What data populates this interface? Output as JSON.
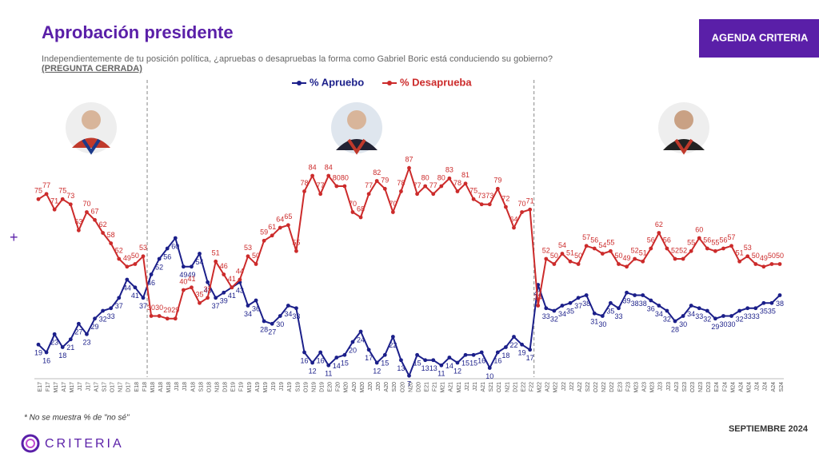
{
  "chart_data": {
    "type": "line",
    "title": "Aprobación presidente",
    "subtitle": "Independientemente de tu posición política, ¿apruebas o desapruebas la forma como Gabriel Boric está conduciendo su gobierno?",
    "question_type": "(PREGUNTA CERRADA)",
    "footnote": "* No se muestra % de \"no sé\"",
    "date_label": "SEPTIEMBRE 2024",
    "categories": [
      "E17",
      "F17",
      "M17",
      "A17",
      "M17",
      "J17",
      "J17",
      "A17",
      "S17",
      "O17",
      "N17",
      "D17",
      "E18",
      "F18",
      "M18",
      "A18",
      "M18",
      "J18",
      "J18",
      "A18",
      "S18",
      "O18",
      "N18",
      "D18",
      "E19",
      "F19",
      "M19",
      "A19",
      "M19",
      "J19",
      "J19",
      "A19",
      "S19",
      "O19",
      "N19",
      "D19",
      "E20",
      "F20",
      "M20",
      "A20",
      "M20",
      "J20",
      "J20",
      "A20",
      "S20",
      "O20",
      "N20",
      "D20",
      "E21",
      "F21",
      "M21",
      "A21",
      "M21",
      "J21",
      "J21",
      "A21",
      "S21",
      "O21",
      "N21",
      "D21",
      "E22",
      "F22",
      "M22",
      "A22",
      "M22",
      "J22",
      "J22",
      "A22",
      "S22",
      "O22",
      "N22",
      "D22",
      "E23",
      "F23",
      "M23",
      "A23",
      "M23",
      "J23",
      "J23",
      "A23",
      "S23",
      "O23",
      "N23",
      "D23",
      "E24",
      "F24",
      "M24",
      "A24",
      "M24",
      "J24",
      "J24",
      "A24",
      "S24"
    ],
    "series": [
      {
        "name": "% Apruebo",
        "color": "#1b1f8a",
        "values": [
          19,
          16,
          23,
          18,
          21,
          27,
          23,
          29,
          32,
          33,
          37,
          44,
          41,
          37,
          46,
          52,
          56,
          60,
          49,
          49,
          54,
          43,
          37,
          39,
          41,
          43,
          34,
          36,
          28,
          27,
          30,
          34,
          33,
          16,
          12,
          16,
          11,
          14,
          15,
          20,
          24,
          17,
          12,
          15,
          22,
          13,
          7,
          15,
          13,
          13,
          11,
          14,
          12,
          15,
          15,
          16,
          10,
          16,
          18,
          22,
          19,
          17,
          42,
          33,
          32,
          34,
          35,
          37,
          38,
          31,
          30,
          35,
          33,
          39,
          38,
          38,
          36,
          34,
          32,
          28,
          30,
          34,
          33,
          32,
          29,
          30,
          30,
          32,
          33,
          33,
          35,
          35,
          38
        ]
      },
      {
        "name": "% Desaprueba",
        "color": "#cc2b2b",
        "values": [
          75,
          77,
          71,
          75,
          73,
          63,
          70,
          67,
          62,
          58,
          52,
          49,
          50,
          53,
          30,
          30,
          29,
          29,
          40,
          41,
          35,
          37,
          51,
          46,
          41,
          44,
          53,
          50,
          59,
          61,
          64,
          65,
          55,
          78,
          84,
          77,
          84,
          80,
          80,
          70,
          68,
          77,
          82,
          79,
          70,
          78,
          87,
          77,
          80,
          77,
          80,
          83,
          78,
          81,
          75,
          73,
          73,
          79,
          72,
          64,
          70,
          71,
          34,
          52,
          50,
          54,
          51,
          50,
          57,
          56,
          54,
          55,
          50,
          49,
          52,
          51,
          56,
          62,
          56,
          52,
          52,
          55,
          60,
          56,
          55,
          56,
          57,
          51,
          53,
          50,
          49,
          50,
          50
        ]
      }
    ],
    "ylim": [
      0,
      100
    ]
  },
  "brand": "AGENDA CRITERIA",
  "logo": "CRITERIA"
}
